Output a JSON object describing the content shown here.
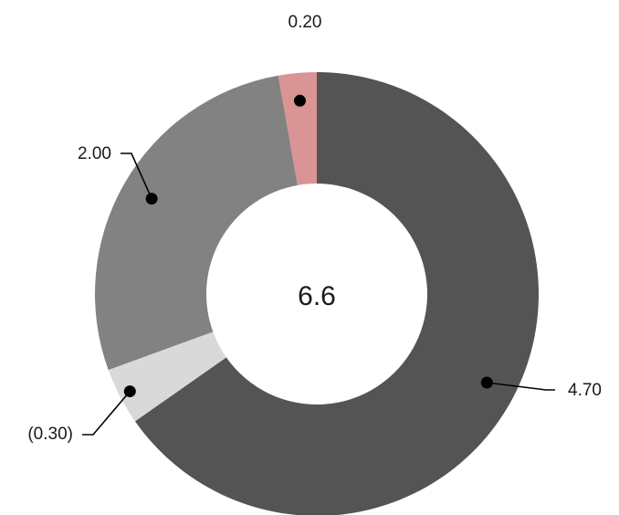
{
  "chart_data": {
    "type": "pie",
    "variant": "donut",
    "center_label": "6.6",
    "slices": [
      {
        "label": "4.70",
        "value": 4.7,
        "display_value": 4.7,
        "color": "#545454"
      },
      {
        "label": "(0.30)",
        "value": -0.3,
        "display_value": 0.3,
        "color": "#d9d9d9"
      },
      {
        "label": "2.00",
        "value": 2.0,
        "display_value": 2.0,
        "color": "#828282"
      },
      {
        "label": "0.20",
        "value": 0.2,
        "display_value": 0.2,
        "color": "#d99594"
      }
    ],
    "legend": "none"
  }
}
